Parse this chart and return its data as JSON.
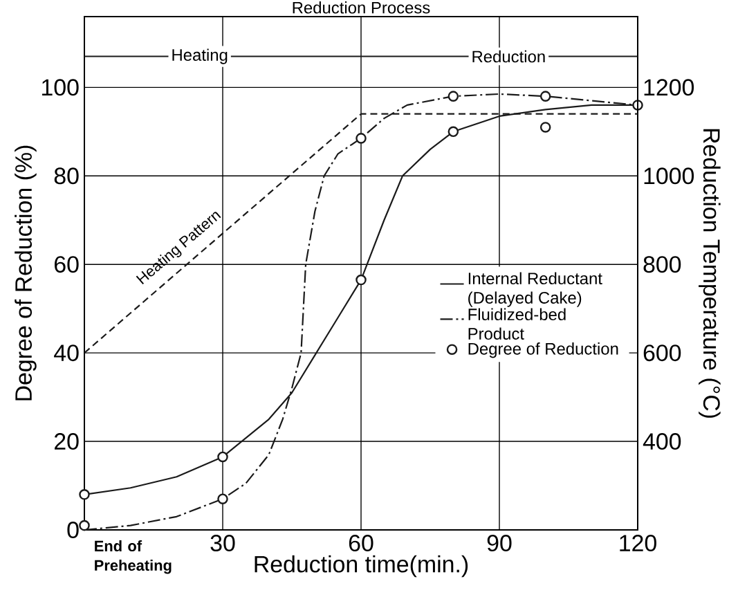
{
  "chart_data": {
    "type": "line",
    "xlabel": "Reduction time(min.)",
    "ylabel": "Degree of Reduction (%)",
    "y2label": "Reduction Temperature (°C)",
    "xlim": [
      0,
      120
    ],
    "xticks": [
      30,
      60,
      90,
      120
    ],
    "ylim": [
      0,
      116
    ],
    "yticks": [
      0,
      20,
      40,
      60,
      80,
      100
    ],
    "y2lim": [
      200,
      1360
    ],
    "y2ticks": [
      400,
      600,
      800,
      1000,
      1200
    ],
    "grid": true,
    "legend": "right",
    "series": [
      {
        "name": "Internal Reductant (Delayed Cake)",
        "color": "#1a1a1a",
        "line_style": "solid",
        "marker": "none",
        "x": [
          0,
          10,
          20,
          30,
          40,
          45,
          50,
          55,
          60,
          65,
          69,
          75,
          80,
          90,
          100,
          110,
          120
        ],
        "values": [
          8,
          9.5,
          12,
          16.5,
          25,
          31,
          39.5,
          48,
          56.5,
          70,
          80,
          86,
          90,
          93.5,
          95,
          96,
          96
        ]
      },
      {
        "name": "Fluidized-bed Product",
        "color": "#1a1a1a",
        "line_style": "dashdot",
        "marker": "none",
        "x": [
          0,
          10,
          20,
          30,
          35,
          40,
          43,
          45,
          47,
          47.5,
          48,
          50,
          52,
          55,
          60,
          65,
          70,
          80,
          90,
          100,
          110,
          120
        ],
        "values": [
          0,
          1,
          3,
          7,
          10.5,
          17,
          25,
          32,
          40,
          50,
          60,
          72,
          80,
          85,
          88.5,
          93,
          96,
          98,
          98.5,
          98,
          97,
          96
        ]
      },
      {
        "name": "Degree of Reduction",
        "type": "scatter",
        "color": "#1a1a1a",
        "marker": "circle",
        "x": [
          0,
          30,
          60,
          80,
          100,
          120,
          0,
          30,
          60,
          80,
          100
        ],
        "values": [
          8,
          16.5,
          56.5,
          90,
          91,
          96,
          1,
          7,
          88.5,
          98,
          98
        ]
      },
      {
        "name": "Heating Pattern",
        "color": "#1a1a1a",
        "line_style": "dashed",
        "marker": "none",
        "axis": "y2",
        "x": [
          0,
          60,
          120
        ],
        "values": [
          600,
          1140,
          1140
        ]
      }
    ],
    "ref_lines": [
      {
        "axis": "y",
        "value": 107,
        "color": "#1a1a1a"
      }
    ],
    "annotations": [
      "Reduction Process",
      "Heating",
      "Reduction",
      "End of Preheating"
    ]
  }
}
